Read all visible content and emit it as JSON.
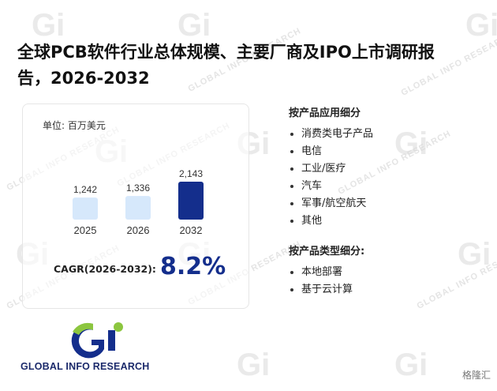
{
  "title": "全球PCB软件行业总体规模、主要厂商及IPO上市调研报告，2026-2032",
  "colors": {
    "accent": "#142e8c",
    "bar_light": "#d6e8fb",
    "bar_dark": "#142e8c"
  },
  "chart_data": {
    "type": "bar",
    "unit_label": "单位: 百万美元",
    "categories": [
      "2025",
      "2026",
      "2032"
    ],
    "values": [
      1242,
      1336,
      2143
    ],
    "value_labels": [
      "1,242",
      "1,336",
      "2,143"
    ],
    "highlight_index": 2
  },
  "cagr": {
    "label": "CAGR(2026-2032):",
    "value": "8.2%"
  },
  "application_section": {
    "heading": "按产品应用细分",
    "items": [
      "消费类电子产品",
      "电信",
      "工业/医疗",
      "汽车",
      "军事/航空航天",
      "其他"
    ]
  },
  "type_section": {
    "heading": "按产品类型细分:",
    "items": [
      "本地部署",
      "基于云计算"
    ]
  },
  "logo": {
    "text": "GLOBAL INFO RESEARCH",
    "icon": "gi-logo-icon"
  },
  "watermark": {
    "text": "GLOBAL INFO RESEARCH"
  },
  "corner_brand": "格隆汇"
}
